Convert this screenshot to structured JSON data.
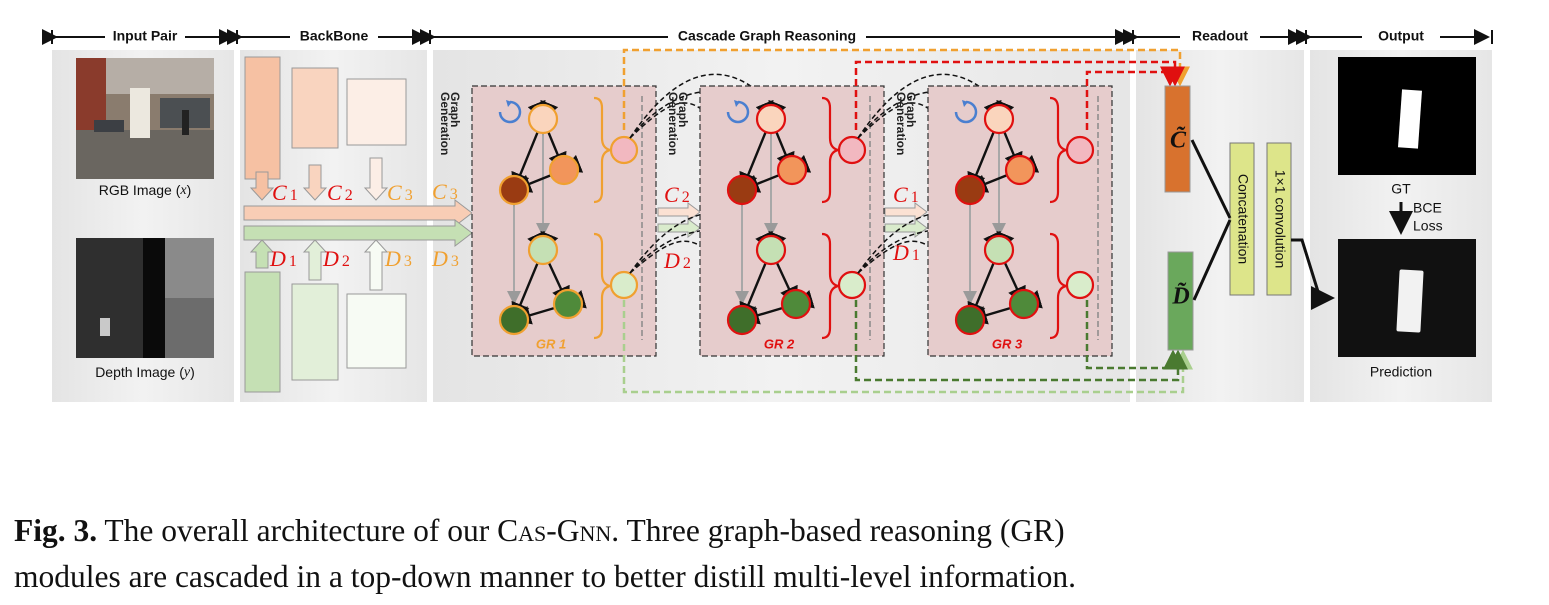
{
  "sections": {
    "input_pair": "Input Pair",
    "backbone": "BackBone",
    "cascade": "Cascade Graph Reasoning",
    "readout": "Readout",
    "output": "Output"
  },
  "inputs": {
    "rgb_label": "RGB Image (",
    "rgb_var": "x",
    "depth_label": "Depth Image (",
    "depth_var": "y",
    "close": ")"
  },
  "backbone": {
    "c1": "C",
    "c1_sub": "1",
    "c2": "C",
    "c2_sub": "2",
    "c3": "C",
    "c3_sub": "3",
    "d1": "D",
    "d1_sub": "1",
    "d2": "D",
    "d2_sub": "2",
    "d3": "D",
    "d3_sub": "3"
  },
  "cascade": {
    "graph_generation_line1": "Graph",
    "graph_generation_line2": "Generation",
    "gr1": "GR 1",
    "gr2": "GR 2",
    "gr3": "GR 3",
    "c3": "C",
    "c3_sub": "3",
    "d3": "D",
    "d3_sub": "3",
    "c2": "C",
    "c2_sub": "2",
    "d2": "D",
    "d2_sub": "2",
    "c1": "C",
    "c1_sub": "1",
    "d1": "D",
    "d1_sub": "1"
  },
  "readout": {
    "c_tilde": "C̃",
    "d_tilde": "D̃",
    "concatenation": "Concatenation",
    "conv": "1×1 convolution"
  },
  "output": {
    "gt": "GT",
    "bce": "BCE",
    "loss": "Loss",
    "prediction": "Prediction"
  },
  "caption": {
    "label": "Fig. 3.",
    "text1": " The overall architecture of our ",
    "model": "Cas-Gnn",
    "text2": ". Three graph-based reasoning (GR)",
    "line2": "modules are cascaded in a top-down manner to better distill multi-level information."
  },
  "colors": {
    "rgb_feature": "#f6c7ad",
    "depth_feature": "#c5e0b4",
    "label_orange": "#f0a030",
    "label_red": "#e01010",
    "gr_box": "#e9cfcf",
    "readout_c": "#d8722e",
    "readout_d": "#6aa85c",
    "concat_box": "#dde58a"
  }
}
